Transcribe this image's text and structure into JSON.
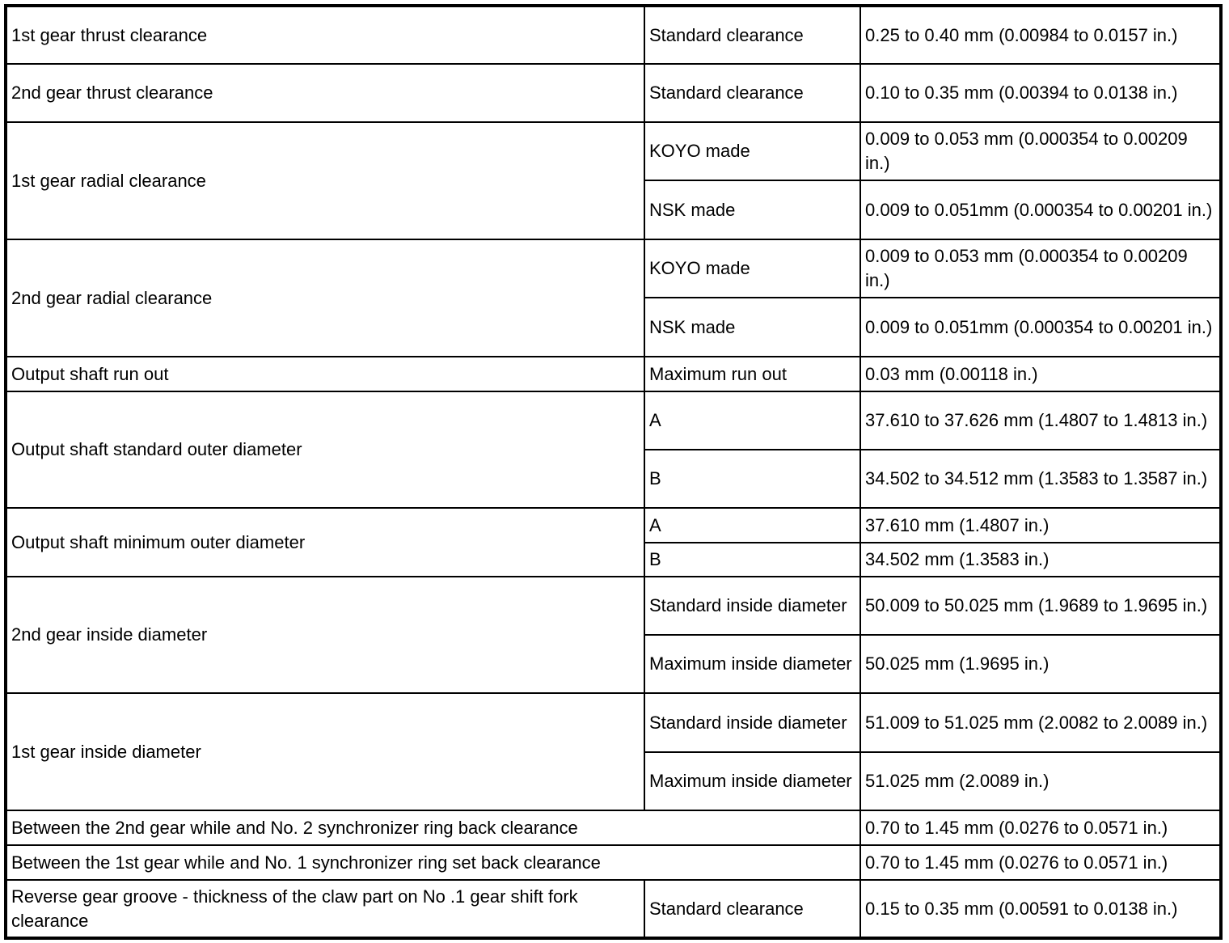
{
  "rows": [
    {
      "item": "1st gear thrust clearance",
      "specs": [
        {
          "label": "Standard clearance",
          "value": "0.25 to 0.40 mm (0.00984 to 0.0157 in.)"
        }
      ]
    },
    {
      "item": "2nd gear thrust clearance",
      "specs": [
        {
          "label": "Standard clearance",
          "value": "0.10 to 0.35 mm (0.00394 to 0.0138 in.)"
        }
      ]
    },
    {
      "item": "1st gear radial clearance",
      "specs": [
        {
          "label": "KOYO made",
          "value": "0.009 to 0.053 mm (0.000354 to 0.00209 in.)"
        },
        {
          "label": "NSK made",
          "value": "0.009 to 0.051mm (0.000354 to 0.00201 in.)"
        }
      ]
    },
    {
      "item": "2nd gear radial clearance",
      "specs": [
        {
          "label": "KOYO made",
          "value": "0.009 to 0.053 mm (0.000354 to 0.00209 in.)"
        },
        {
          "label": "NSK made",
          "value": "0.009 to 0.051mm (0.000354 to 0.00201 in.)"
        }
      ]
    },
    {
      "item": "Output shaft run out",
      "specs": [
        {
          "label": "Maximum run out",
          "value": "0.03 mm (0.00118 in.)"
        }
      ]
    },
    {
      "item": "Output shaft standard outer diameter",
      "specs": [
        {
          "label": "A",
          "value": "37.610 to 37.626 mm (1.4807 to 1.4813 in.)"
        },
        {
          "label": "B",
          "value": "34.502 to 34.512 mm (1.3583 to 1.3587 in.)"
        }
      ]
    },
    {
      "item": "Output shaft minimum outer diameter",
      "specs": [
        {
          "label": "A",
          "value": "37.610 mm (1.4807 in.)"
        },
        {
          "label": "B",
          "value": "34.502 mm (1.3583 in.)"
        }
      ]
    },
    {
      "item": "2nd gear inside diameter",
      "specs": [
        {
          "label": "Standard inside diameter",
          "value": "50.009 to 50.025 mm (1.9689 to 1.9695 in.)"
        },
        {
          "label": "Maximum inside diameter",
          "value": "50.025 mm (1.9695 in.)"
        }
      ]
    },
    {
      "item": "1st gear inside diameter",
      "specs": [
        {
          "label": "Standard inside diameter",
          "value": "51.009 to 51.025 mm (2.0082 to 2.0089 in.)"
        },
        {
          "label": "Maximum inside diameter",
          "value": "51.025 mm (2.0089 in.)"
        }
      ]
    },
    {
      "item": "Between the 2nd gear while and No. 2 synchronizer ring back clearance",
      "specs": [
        {
          "label": null,
          "value": "0.70 to 1.45 mm (0.0276 to 0.0571 in.)"
        }
      ]
    },
    {
      "item": "Between the 1st gear while and No. 1 synchronizer ring set back clearance",
      "specs": [
        {
          "label": null,
          "value": "0.70 to 1.45 mm (0.0276 to 0.0571 in.)"
        }
      ]
    },
    {
      "item": "Reverse gear groove - thickness of the claw part on No .1 gear shift fork clearance",
      "specs": [
        {
          "label": "Standard clearance",
          "value": "0.15 to 0.35 mm (0.00591 to 0.0138 in.)"
        }
      ]
    }
  ]
}
